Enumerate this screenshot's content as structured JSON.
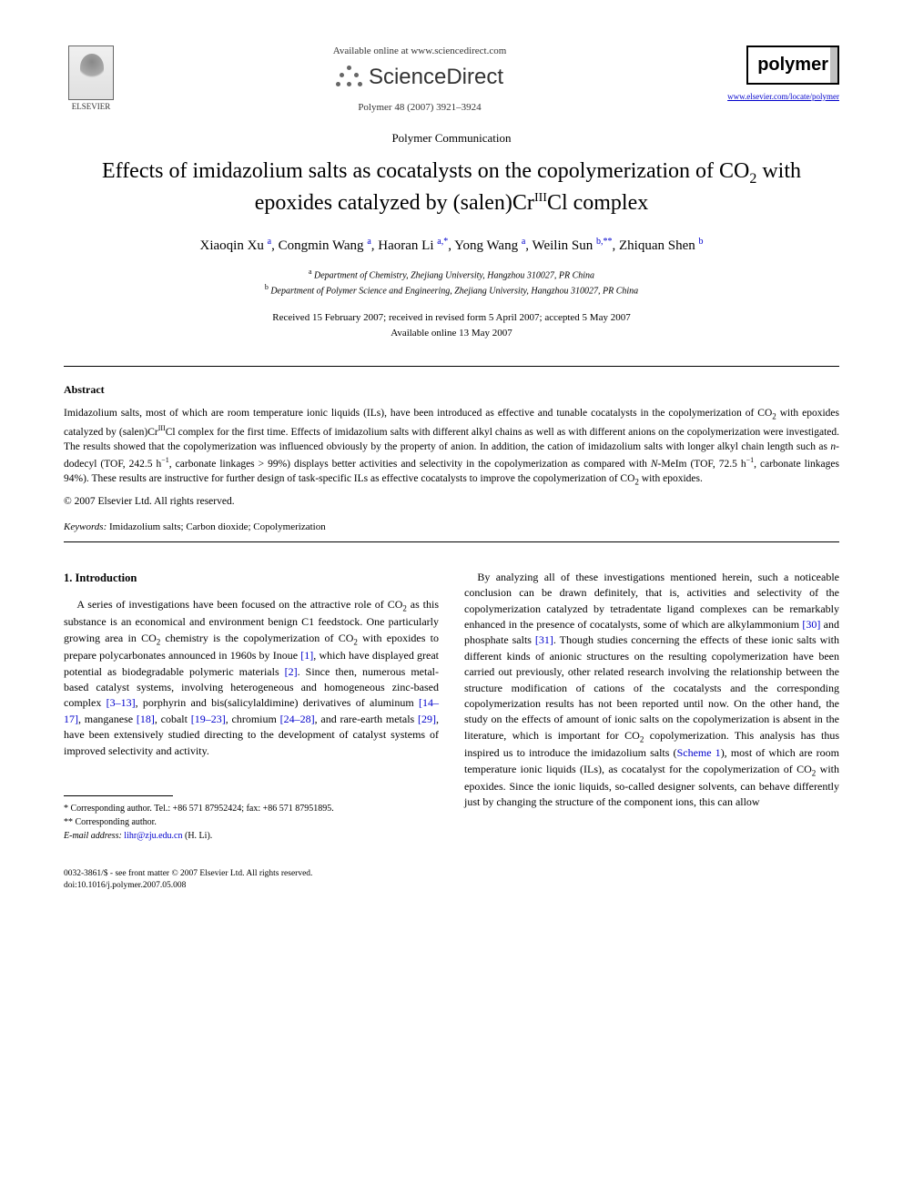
{
  "header": {
    "elsevier_label": "ELSEVIER",
    "available_online": "Available online at www.sciencedirect.com",
    "sciencedirect": "ScienceDirect",
    "journal_ref": "Polymer 48 (2007) 3921–3924",
    "polymer_logo": "polymer",
    "journal_link": "www.elsevier.com/locate/polymer"
  },
  "article": {
    "type": "Polymer Communication",
    "title_html": "Effects of imidazolium salts as cocatalysts on the copolymerization of CO<sub>2</sub> with epoxides catalyzed by (salen)Cr<sup>III</sup>Cl complex",
    "authors_html": "Xiaoqin Xu <sup>a</sup>, Congmin Wang <sup>a</sup>, Haoran Li <sup>a,*</sup>, Yong Wang <sup>a</sup>, Weilin Sun <sup>b,**</sup>, Zhiquan Shen <sup>b</sup>",
    "affiliations": {
      "a": "Department of Chemistry, Zhejiang University, Hangzhou 310027, PR China",
      "b": "Department of Polymer Science and Engineering, Zhejiang University, Hangzhou 310027, PR China"
    },
    "dates_line1": "Received 15 February 2007; received in revised form 5 April 2007; accepted 5 May 2007",
    "dates_line2": "Available online 13 May 2007"
  },
  "abstract": {
    "heading": "Abstract",
    "body_html": "Imidazolium salts, most of which are room temperature ionic liquids (ILs), have been introduced as effective and tunable cocatalysts in the copolymerization of CO<sub>2</sub> with epoxides catalyzed by (salen)Cr<sup>III</sup>Cl complex for the first time. Effects of imidazolium salts with different alkyl chains as well as with different anions on the copolymerization were investigated. The results showed that the copolymerization was influenced obviously by the property of anion. In addition, the cation of imidazolium salts with longer alkyl chain length such as <i>n</i>-dodecyl (TOF, 242.5 h<sup>−1</sup>, carbonate linkages > 99%) displays better activities and selectivity in the copolymerization as compared with <i>N</i>-MeIm (TOF, 72.5 h<sup>−1</sup>, carbonate linkages 94%). These results are instructive for further design of task-specific ILs as effective cocatalysts to improve the copolymerization of CO<sub>2</sub> with epoxides.",
    "copyright": "© 2007 Elsevier Ltd. All rights reserved.",
    "keywords_label": "Keywords:",
    "keywords": "Imidazolium salts; Carbon dioxide; Copolymerization"
  },
  "body": {
    "section1_heading": "1. Introduction",
    "col1_html": "A series of investigations have been focused on the attractive role of CO<sub>2</sub> as this substance is an economical and environment benign C1 feedstock. One particularly growing area in CO<sub>2</sub> chemistry is the copolymerization of CO<sub>2</sub> with epoxides to prepare polycarbonates announced in 1960s by Inoue <span class=\"ref-link\">[1]</span>, which have displayed great potential as biodegradable polymeric materials <span class=\"ref-link\">[2]</span>. Since then, numerous metal-based catalyst systems, involving heterogeneous and homogeneous zinc-based complex <span class=\"ref-link\">[3–13]</span>, porphyrin and bis(salicylaldimine) derivatives of aluminum <span class=\"ref-link\">[14–17]</span>, manganese <span class=\"ref-link\">[18]</span>, cobalt <span class=\"ref-link\">[19–23]</span>, chromium <span class=\"ref-link\">[24–28]</span>, and rare-earth metals <span class=\"ref-link\">[29]</span>, have been extensively studied directing to the development of catalyst systems of improved selectivity and activity.",
    "col2_html": "By analyzing all of these investigations mentioned herein, such a noticeable conclusion can be drawn definitely, that is, activities and selectivity of the copolymerization catalyzed by tetradentate ligand complexes can be remarkably enhanced in the presence of cocatalysts, some of which are alkylammonium <span class=\"ref-link\">[30]</span> and phosphate salts <span class=\"ref-link\">[31]</span>. Though studies concerning the effects of these ionic salts with different kinds of anionic structures on the resulting copolymerization have been carried out previously, other related research involving the relationship between the structure modification of cations of the cocatalysts and the corresponding copolymerization results has not been reported until now. On the other hand, the study on the effects of amount of ionic salts on the copolymerization is absent in the literature, which is important for CO<sub>2</sub> copolymerization. This analysis has thus inspired us to introduce the imidazolium salts (<span class=\"ref-link\">Scheme 1</span>), most of which are room temperature ionic liquids (ILs), as cocatalyst for the copolymerization of CO<sub>2</sub> with epoxides. Since the ionic liquids, so-called designer solvents, can behave differently just by changing the structure of the component ions, this can allow"
  },
  "footnotes": {
    "fn1": "* Corresponding author. Tel.: +86 571 87952424; fax: +86 571 87951895.",
    "fn2": "** Corresponding author.",
    "email_label": "E-mail address:",
    "email": "lihr@zju.edu.cn",
    "email_name": "(H. Li)."
  },
  "bottom": {
    "issn": "0032-3861/$ - see front matter © 2007 Elsevier Ltd. All rights reserved.",
    "doi": "doi:10.1016/j.polymer.2007.05.008"
  }
}
